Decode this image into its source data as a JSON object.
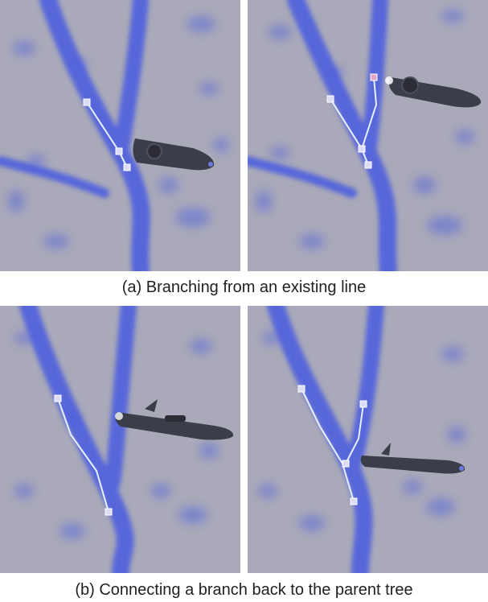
{
  "figure": {
    "panels": [
      {
        "id": "a-left",
        "controller": "upright",
        "state": "before-branch"
      },
      {
        "id": "a-right",
        "controller": "upright-raised",
        "state": "branch-drawn"
      },
      {
        "id": "b-left",
        "controller": "angled",
        "state": "branch-open"
      },
      {
        "id": "b-right",
        "controller": "angled",
        "state": "branch-connected"
      }
    ],
    "captions": {
      "a": "(a) Branching from an existing line",
      "b": "(b) Connecting a branch back to the parent tree"
    },
    "colors": {
      "background": "#a9a9b9",
      "neurite": "#4a5ce0",
      "trace_line": "#e6f2ff",
      "node": "#dcdcf5",
      "controller": "#3b3d48"
    }
  }
}
